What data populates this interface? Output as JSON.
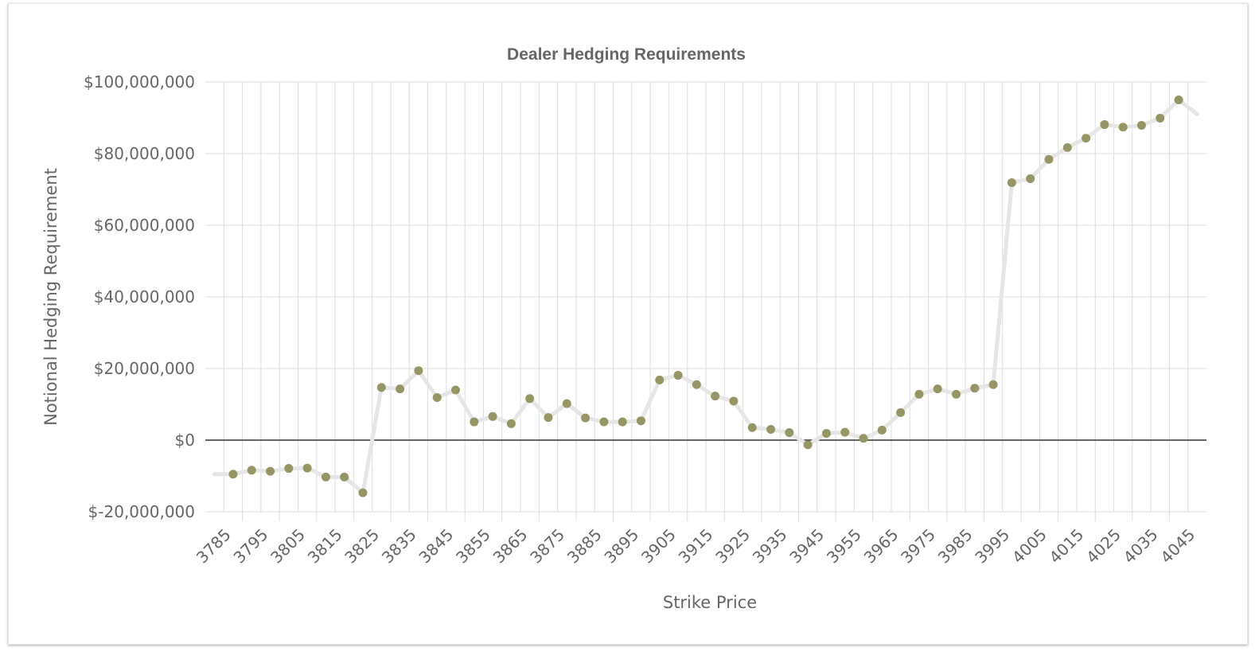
{
  "chart_data": {
    "type": "line",
    "title": "Dealer Hedging Requirements",
    "xlabel": "Strike Price",
    "ylabel": "Notional Hedging Requirement",
    "ylim": [
      -20000000,
      100000000
    ],
    "y_ticks": [
      -20000000,
      0,
      20000000,
      40000000,
      60000000,
      80000000,
      100000000
    ],
    "y_tick_labels": [
      "$-20,000,000",
      "$0",
      "$20,000,000",
      "$40,000,000",
      "$60,000,000",
      "$80,000,000",
      "$100,000,000"
    ],
    "x_tick_labels": [
      "3785",
      "3795",
      "3805",
      "3815",
      "3825",
      "3835",
      "3845",
      "3855",
      "3865",
      "3875",
      "3885",
      "3895",
      "3905",
      "3915",
      "3925",
      "3935",
      "3945",
      "3955",
      "3965",
      "3975",
      "3985",
      "3995",
      "4005",
      "4015",
      "4025",
      "4035",
      "4045"
    ],
    "grid": true,
    "series": [
      {
        "x": [
          3782.5,
          3787.5,
          3792.5,
          3797.5,
          3802.5,
          3807.5,
          3812.5,
          3817.5,
          3822.5,
          3827.5,
          3832.5,
          3837.5,
          3842.5,
          3847.5,
          3852.5,
          3857.5,
          3862.5,
          3867.5,
          3872.5,
          3877.5,
          3882.5,
          3887.5,
          3892.5,
          3897.5,
          3902.5,
          3907.5,
          3912.5,
          3917.5,
          3922.5,
          3927.5,
          3932.5,
          3937.5,
          3942.5,
          3947.5,
          3952.5,
          3957.5,
          3962.5,
          3967.5,
          3972.5,
          3977.5,
          3982.5,
          3987.5,
          3992.5,
          3997.5,
          4002.5,
          4007.5,
          4012.5,
          4017.5,
          4022.5,
          4027.5,
          4032.5,
          4037.5,
          4042.5,
          4047.5
        ],
        "values": [
          -9500000,
          -9500000,
          -8400000,
          -8700000,
          -7900000,
          -7800000,
          -10300000,
          -10300000,
          -14700000,
          14700000,
          14300000,
          19400000,
          11900000,
          14000000,
          5100000,
          6600000,
          4600000,
          11600000,
          6300000,
          10200000,
          6200000,
          5100000,
          5100000,
          5400000,
          16800000,
          18100000,
          15500000,
          12300000,
          10900000,
          3500000,
          3000000,
          2100000,
          -1300000,
          1900000,
          2200000,
          500000,
          2800000,
          7700000,
          12800000,
          14300000,
          12800000,
          14500000,
          15500000,
          71900000,
          73000000,
          78400000,
          81700000,
          84300000,
          88100000,
          87400000,
          87900000,
          89900000,
          95000000,
          91000000
        ]
      }
    ],
    "colors": {
      "line": "#e6e6e6",
      "marker": "#969664",
      "zero_line": "#333333",
      "grid": "#dddddd"
    }
  }
}
